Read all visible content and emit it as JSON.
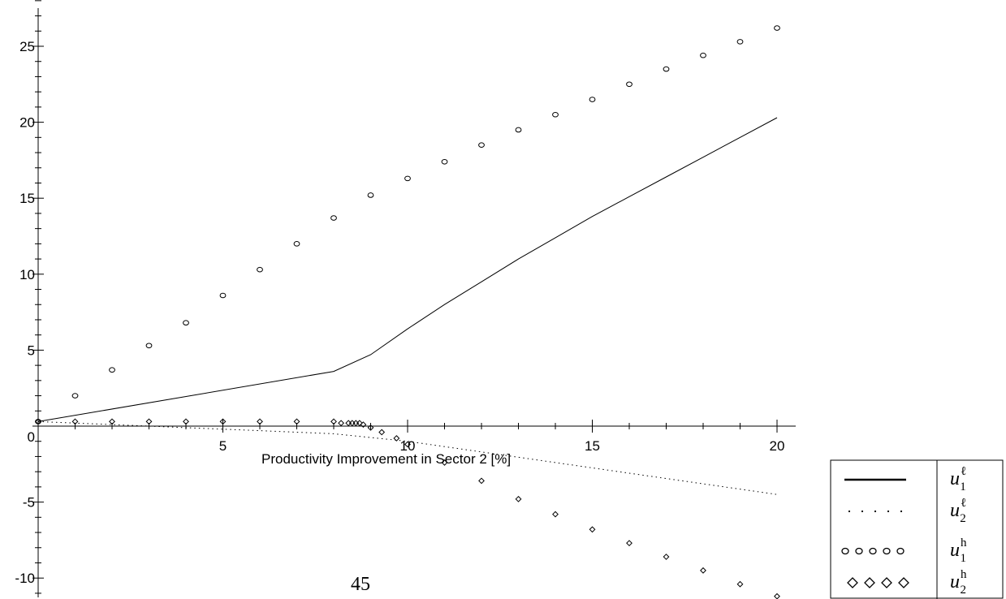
{
  "chart_data": {
    "type": "line",
    "title": "",
    "xlabel": "Productivity Improvement in Sector 2 [%]",
    "ylabel": "",
    "xlim": [
      0,
      20
    ],
    "ylim": [
      -11,
      28
    ],
    "x_ticks": [
      5,
      10,
      15,
      20
    ],
    "y_ticks": [
      -10,
      -5,
      0,
      5,
      10,
      15,
      20,
      25
    ],
    "x_tick_labels": [
      "5",
      "10",
      "15",
      "20"
    ],
    "y_tick_labels": [
      "-10",
      "-5",
      "0",
      "5",
      "10",
      "15",
      "20",
      "25"
    ],
    "grid": false,
    "legend_position": "bottom-right",
    "series": [
      {
        "name": "u_1^ℓ",
        "style": "solid",
        "x": [
          0,
          8,
          9,
          10,
          11,
          12,
          13,
          14,
          15,
          16,
          17,
          18,
          19,
          20
        ],
        "y": [
          0.3,
          3.6,
          4.7,
          6.4,
          8.0,
          9.5,
          11.0,
          12.4,
          13.8,
          15.1,
          16.4,
          17.7,
          19.0,
          20.3
        ]
      },
      {
        "name": "u_2^ℓ",
        "style": "dotted",
        "x": [
          0,
          2,
          4,
          6,
          8,
          10,
          12,
          14,
          16,
          18,
          20
        ],
        "y": [
          0.3,
          0.1,
          -0.1,
          -0.3,
          -0.5,
          -1.0,
          -1.7,
          -2.4,
          -3.1,
          -3.8,
          -4.5
        ]
      },
      {
        "name": "u_1^h",
        "style": "circle",
        "x": [
          0,
          1,
          2,
          3,
          4,
          5,
          6,
          7,
          8,
          9,
          10,
          11,
          12,
          13,
          14,
          15,
          16,
          17,
          18,
          19,
          20
        ],
        "y": [
          0.3,
          2.0,
          3.7,
          5.3,
          6.8,
          8.6,
          10.3,
          12.0,
          13.7,
          15.2,
          16.3,
          17.4,
          18.5,
          19.5,
          20.5,
          21.5,
          22.5,
          23.5,
          24.4,
          25.3,
          26.2
        ]
      },
      {
        "name": "u_2^h",
        "style": "diamond",
        "x": [
          0,
          1,
          2,
          3,
          4,
          5,
          6,
          7,
          8,
          8.2,
          8.4,
          8.5,
          8.6,
          8.7,
          8.8,
          9.0,
          9.3,
          9.7,
          10.0,
          11.0,
          12.0,
          13.0,
          14.0,
          15.0,
          16.0,
          17.0,
          18.0,
          19.0,
          20.0
        ],
        "y": [
          0.3,
          0.3,
          0.3,
          0.3,
          0.3,
          0.3,
          0.3,
          0.3,
          0.3,
          0.2,
          0.2,
          0.2,
          0.2,
          0.2,
          0.1,
          -0.1,
          -0.4,
          -0.8,
          -1.2,
          -2.4,
          -3.6,
          -4.8,
          -5.8,
          -6.8,
          -7.7,
          -8.6,
          -9.5,
          -10.4,
          -11.2
        ]
      }
    ]
  },
  "legend": {
    "entries": [
      {
        "base": "u",
        "sub": "1",
        "sup": "ℓ",
        "style": "solid"
      },
      {
        "base": "u",
        "sub": "2",
        "sup": "ℓ",
        "style": "dotted"
      },
      {
        "base": "u",
        "sub": "1",
        "sup": "h",
        "style": "circle"
      },
      {
        "base": "u",
        "sub": "2",
        "sup": "h",
        "style": "diamond"
      }
    ]
  },
  "page_number": "45"
}
